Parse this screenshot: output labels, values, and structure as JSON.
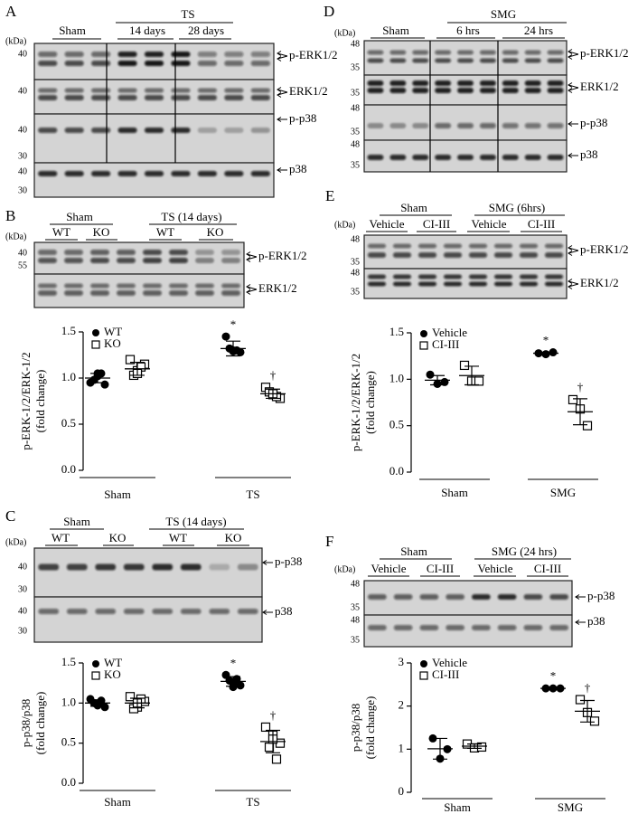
{
  "panels": {
    "A": {
      "letter": "A",
      "kda": "(kDa)",
      "groups": [
        "Sham",
        "TS",
        "14 days",
        "28 days"
      ],
      "markers": [
        "40",
        "40",
        "40",
        "30",
        "40",
        "30"
      ],
      "bands": [
        "p-ERK1/2",
        "ERK1/2",
        "p-p38",
        "p38"
      ]
    },
    "B": {
      "letter": "B",
      "kda": "(kDa)",
      "groups": [
        "Sham",
        "TS (14 days)"
      ],
      "genotypes": [
        "WT",
        "KO",
        "WT",
        "KO"
      ],
      "markers": [
        "40",
        "55"
      ],
      "bands": [
        "p-ERK1/2",
        "ERK1/2"
      ]
    },
    "C": {
      "letter": "C",
      "kda": "(kDa)",
      "groups": [
        "Sham",
        "TS (14 days)"
      ],
      "genotypes": [
        "WT",
        "KO",
        "WT",
        "KO"
      ],
      "markers": [
        "40",
        "30",
        "40",
        "30"
      ],
      "bands": [
        "p-p38",
        "p38"
      ]
    },
    "D": {
      "letter": "D",
      "kda": "(kDa)",
      "groups": [
        "Sham",
        "SMG",
        "6 hrs",
        "24 hrs"
      ],
      "markers": [
        "48",
        "35",
        "35",
        "48",
        "35",
        "48",
        "35"
      ],
      "bands": [
        "p-ERK1/2",
        "ERK1/2",
        "p-p38",
        "p38"
      ]
    },
    "E": {
      "letter": "E",
      "kda": "(kDa)",
      "groups": [
        "Sham",
        "SMG (6hrs)"
      ],
      "treatments": [
        "Vehicle",
        "CI-III",
        "Vehicle",
        "CI-III"
      ],
      "markers": [
        "48",
        "35",
        "48",
        "35"
      ],
      "bands": [
        "p-ERK1/2",
        "ERK1/2"
      ]
    },
    "F": {
      "letter": "F",
      "kda": "(kDa)",
      "groups": [
        "Sham",
        "SMG (24 hrs)"
      ],
      "treatments": [
        "Vehicle",
        "CI-III",
        "Vehicle",
        "CI-III"
      ],
      "markers": [
        "48",
        "35",
        "48",
        "35"
      ],
      "bands": [
        "p-p38",
        "p38"
      ]
    }
  },
  "chart_data": [
    {
      "type": "dot",
      "ylabel": [
        "p-ERK-1/2/ERK-1/2",
        "(fold change)"
      ],
      "categories": [
        "Sham",
        "TS"
      ],
      "series": [
        {
          "name": "WT",
          "marker": "circle",
          "color": "#000000",
          "values": [
            [
              0.95,
              1.05,
              0.93,
              0.98,
              1.05,
              1.02
            ],
            [
              1.45,
              1.3,
              1.28,
              1.32,
              1.3,
              1.29
            ]
          ],
          "mean": [
            1.0,
            1.32
          ],
          "sd": [
            0.05,
            0.08
          ],
          "annotations": [
            null,
            "*"
          ]
        },
        {
          "name": "KO",
          "marker": "square",
          "color": "#000000",
          "values": [
            [
              1.2,
              1.08,
              1.15,
              1.03,
              1.12,
              1.05
            ],
            [
              0.9,
              0.82,
              0.78,
              0.85,
              0.8,
              0.83
            ]
          ],
          "mean": [
            1.1,
            0.83
          ],
          "sd": [
            0.07,
            0.05
          ],
          "annotations": [
            null,
            "†"
          ]
        }
      ],
      "ylim": [
        0,
        1.5
      ],
      "yticks": [
        {
          "value": 0,
          "label": "0.0"
        },
        {
          "value": 0.5,
          "label": "0.5"
        },
        {
          "value": 1,
          "label": "1.0"
        },
        {
          "value": 1.5,
          "label": "1.5"
        }
      ],
      "legend": "upper left"
    },
    {
      "type": "dot",
      "ylabel": [
        "p-p38/p38",
        "(fold change)"
      ],
      "categories": [
        "Sham",
        "TS"
      ],
      "series": [
        {
          "name": "WT",
          "marker": "circle",
          "color": "#000000",
          "values": [
            [
              1.05,
              0.98,
              0.95,
              1.0,
              1.03,
              0.97
            ],
            [
              1.35,
              1.25,
              1.22,
              1.28,
              1.3,
              1.2
            ]
          ],
          "mean": [
            1.0,
            1.27
          ],
          "sd": [
            0.04,
            0.06
          ],
          "annotations": [
            null,
            "*"
          ]
        },
        {
          "name": "KO",
          "marker": "square",
          "color": "#000000",
          "values": [
            [
              1.08,
              0.95,
              1.02,
              0.93,
              1.05,
              1.0
            ],
            [
              0.7,
              0.6,
              0.5,
              0.45,
              0.3,
              0.55
            ]
          ],
          "mean": [
            1.0,
            0.52
          ],
          "sd": [
            0.06,
            0.14
          ],
          "annotations": [
            null,
            "†"
          ]
        }
      ],
      "ylim": [
        0,
        1.5
      ],
      "yticks": [
        {
          "value": 0,
          "label": "0.0"
        },
        {
          "value": 0.5,
          "label": "0.5"
        },
        {
          "value": 1,
          "label": "1.0"
        },
        {
          "value": 1.5,
          "label": "1.5"
        }
      ],
      "legend": "upper left"
    },
    {
      "type": "dot",
      "ylabel": [
        "p-ERK-1/2/ERK-1/2",
        "(fold change)"
      ],
      "categories": [
        "Sham",
        "SMG"
      ],
      "series": [
        {
          "name": "Vehicle",
          "marker": "circle",
          "color": "#000000",
          "values": [
            [
              1.05,
              0.95,
              0.97
            ],
            [
              1.28,
              1.27,
              1.29
            ]
          ],
          "mean": [
            0.99,
            1.28
          ],
          "sd": [
            0.05,
            0.01
          ],
          "annotations": [
            null,
            "*"
          ]
        },
        {
          "name": "CI-III",
          "marker": "square",
          "color": "#000000",
          "values": [
            [
              1.15,
              0.98,
              0.98
            ],
            [
              0.78,
              0.68,
              0.5
            ]
          ],
          "mean": [
            1.04,
            0.65
          ],
          "sd": [
            0.1,
            0.14
          ],
          "annotations": [
            null,
            "†"
          ]
        }
      ],
      "ylim": [
        0,
        1.5
      ],
      "yticks": [
        {
          "value": 0,
          "label": "0.0"
        },
        {
          "value": 0.5,
          "label": "0.5"
        },
        {
          "value": 1,
          "label": "1.0"
        },
        {
          "value": 1.5,
          "label": "1.5"
        }
      ],
      "legend": "upper left"
    },
    {
      "type": "dot",
      "ylabel": [
        "p-p38/p38",
        "(fold change)"
      ],
      "categories": [
        "Sham",
        "SMG"
      ],
      "series": [
        {
          "name": "Vehicle",
          "marker": "circle",
          "color": "#000000",
          "values": [
            [
              1.25,
              0.78,
              1.0
            ],
            [
              2.41,
              2.41,
              2.41
            ]
          ],
          "mean": [
            1.01,
            2.41
          ],
          "sd": [
            0.24,
            0.01
          ],
          "annotations": [
            null,
            "*"
          ]
        },
        {
          "name": "CI-III",
          "marker": "square",
          "color": "#000000",
          "values": [
            [
              1.12,
              1.03,
              1.05
            ],
            [
              2.15,
              1.85,
              1.65
            ]
          ],
          "mean": [
            1.07,
            1.88
          ],
          "sd": [
            0.05,
            0.25
          ],
          "annotations": [
            null,
            "†"
          ]
        }
      ],
      "ylim": [
        0,
        3
      ],
      "yticks": [
        0,
        1,
        2,
        3
      ],
      "legend": "upper left"
    }
  ]
}
